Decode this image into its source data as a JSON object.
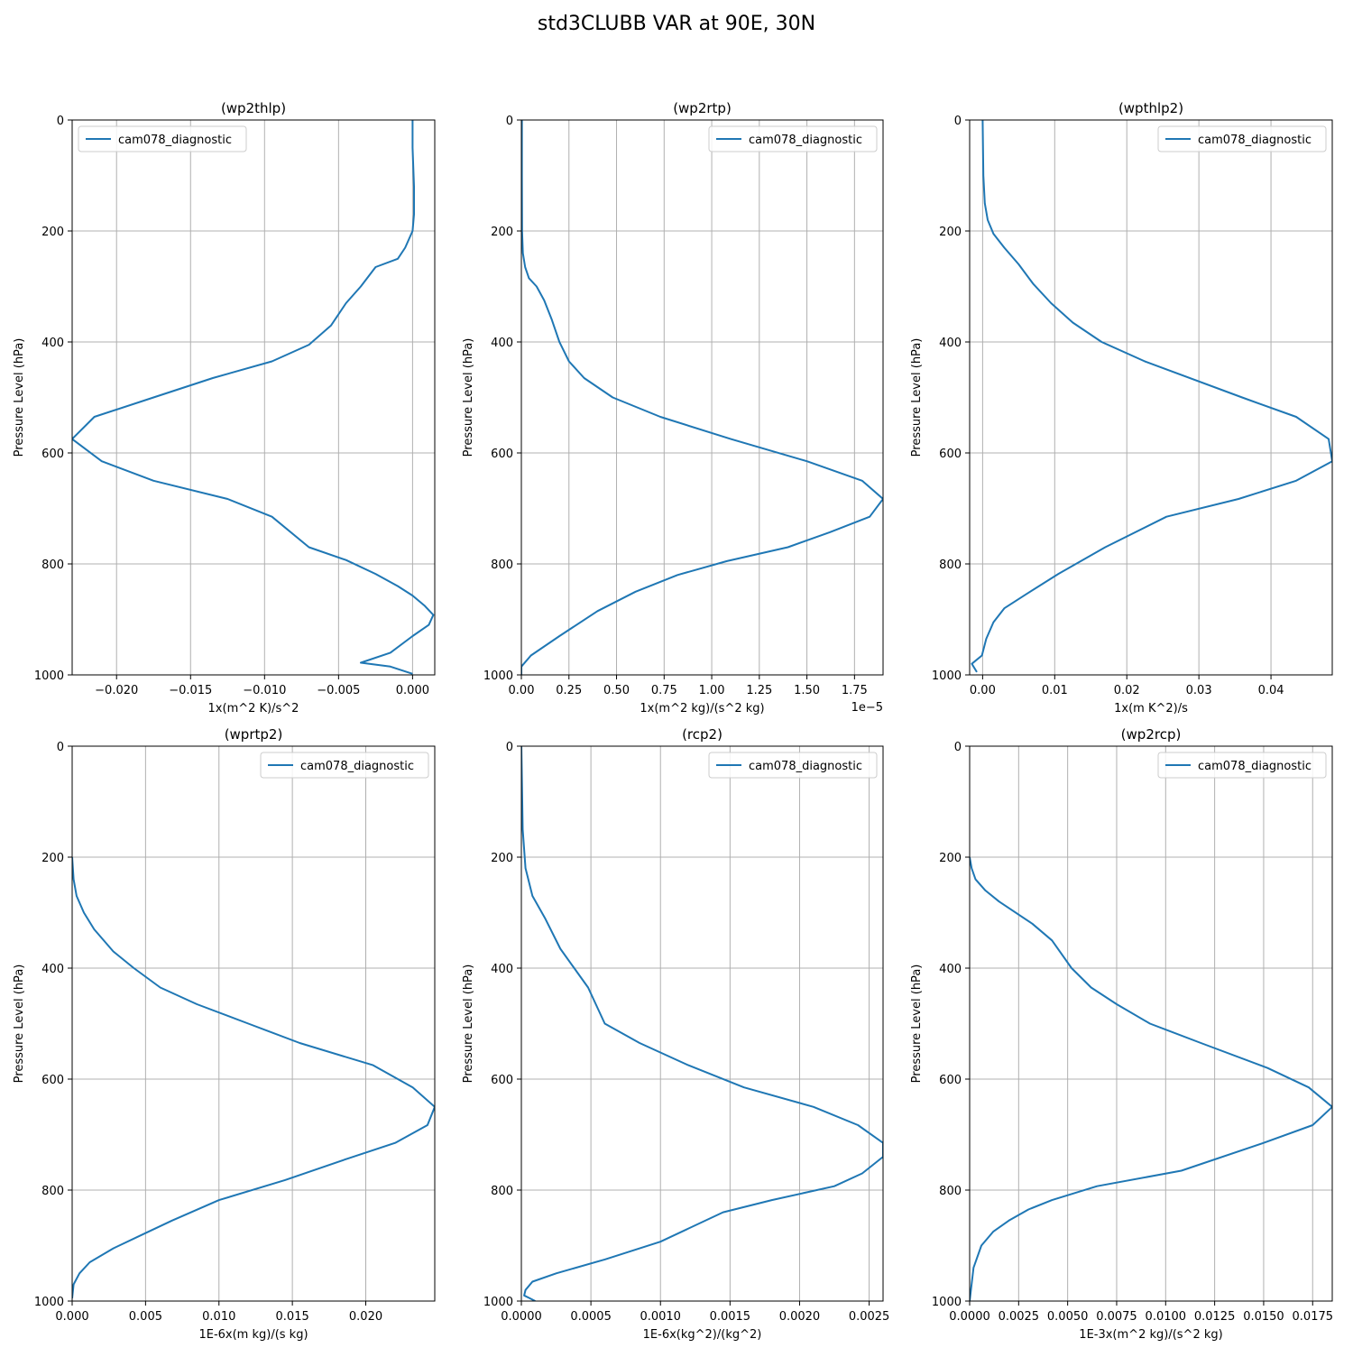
{
  "figure": {
    "suptitle": "std3CLUBB VAR at 90E, 30N"
  },
  "colors": {
    "line": "#1f77b4",
    "grid": "#b0b0b0",
    "axes": "#000000",
    "legend_border": "#cccccc"
  },
  "chart_data": [
    {
      "type": "line",
      "title": "(wp2thlp)",
      "xlabel": "1x(m^2 K)/s^2",
      "ylabel": "Pressure Level (hPa)",
      "xlim": [
        -0.023,
        0.0015
      ],
      "ylim": [
        1000,
        0
      ],
      "xticks": [
        -0.02,
        -0.015,
        -0.01,
        -0.005,
        0.0
      ],
      "xtick_labels": [
        "−0.020",
        "−0.015",
        "−0.010",
        "−0.005",
        "0.000"
      ],
      "yticks": [
        0,
        200,
        400,
        600,
        800,
        1000
      ],
      "offset_text": "",
      "grid": true,
      "legend": {
        "location": "upper left",
        "entries": [
          "cam078_diagnostic"
        ]
      },
      "series": [
        {
          "name": "cam078_diagnostic",
          "x": [
            0.0,
            0.0,
            0.0001,
            0.0001,
            0.0,
            -0.0005,
            -0.001,
            -0.0025,
            -0.0035,
            -0.0045,
            -0.0055,
            -0.007,
            -0.0095,
            -0.0135,
            -0.0175,
            -0.0215,
            -0.023,
            -0.021,
            -0.0175,
            -0.0125,
            -0.0095,
            -0.007,
            -0.0045,
            -0.0025,
            -0.001,
            0.0,
            0.0008,
            0.0014,
            0.0011,
            0.0,
            -0.0015,
            -0.0035,
            -0.0015,
            0.0
          ],
          "y": [
            0,
            50,
            120,
            170,
            200,
            230,
            250,
            265,
            300,
            330,
            370,
            405,
            435,
            465,
            500,
            535,
            575,
            615,
            650,
            683,
            715,
            770,
            793,
            818,
            840,
            857,
            875,
            892,
            910,
            930,
            960,
            978,
            985,
            998
          ]
        }
      ]
    },
    {
      "type": "line",
      "title": "(wp2rtp)",
      "xlabel": "1x(m^2 kg)/(s^2 kg)",
      "ylabel": "Pressure Level (hPa)",
      "xlim": [
        0.0,
        1.9
      ],
      "ylim": [
        1000,
        0
      ],
      "xticks": [
        0.0,
        0.25,
        0.5,
        0.75,
        1.0,
        1.25,
        1.5,
        1.75
      ],
      "xtick_labels": [
        "0.00",
        "0.25",
        "0.50",
        "0.75",
        "1.00",
        "1.25",
        "1.50",
        "1.75"
      ],
      "yticks": [
        0,
        200,
        400,
        600,
        800,
        1000
      ],
      "offset_text": "1e−5",
      "grid": true,
      "legend": {
        "location": "upper right",
        "entries": [
          "cam078_diagnostic"
        ]
      },
      "series": [
        {
          "name": "cam078_diagnostic",
          "x": [
            0.003,
            0.003,
            0.004,
            0.008,
            0.02,
            0.04,
            0.08,
            0.12,
            0.16,
            0.2,
            0.25,
            0.33,
            0.48,
            0.73,
            1.1,
            1.5,
            1.79,
            1.9,
            1.83,
            1.62,
            1.4,
            1.08,
            0.82,
            0.6,
            0.4,
            0.2,
            0.05,
            0.0,
            0.0
          ],
          "y": [
            0,
            100,
            200,
            240,
            265,
            285,
            300,
            325,
            360,
            400,
            435,
            465,
            500,
            535,
            575,
            615,
            650,
            683,
            715,
            743,
            770,
            795,
            820,
            850,
            885,
            930,
            965,
            985,
            1000
          ]
        }
      ]
    },
    {
      "type": "line",
      "title": "(wpthlp2)",
      "xlabel": "1x(m K^2)/s",
      "ylabel": "Pressure Level (hPa)",
      "xlim": [
        -0.0018,
        0.0485
      ],
      "ylim": [
        1000,
        0
      ],
      "xticks": [
        0.0,
        0.01,
        0.02,
        0.03,
        0.04
      ],
      "xtick_labels": [
        "0.00",
        "0.01",
        "0.02",
        "0.03",
        "0.04"
      ],
      "yticks": [
        0,
        200,
        400,
        600,
        800,
        1000
      ],
      "offset_text": "",
      "grid": true,
      "legend": {
        "location": "upper right",
        "entries": [
          "cam078_diagnostic"
        ]
      },
      "series": [
        {
          "name": "cam078_diagnostic",
          "x": [
            0.0,
            0.0001,
            0.0003,
            0.0007,
            0.0015,
            0.003,
            0.005,
            0.007,
            0.0095,
            0.0125,
            0.0165,
            0.0225,
            0.036,
            0.0435,
            0.048,
            0.0485,
            0.0435,
            0.0355,
            0.0255,
            0.017,
            0.0105,
            0.006,
            0.003,
            0.0015,
            0.0005,
            -0.0001,
            -0.0015,
            -0.0008
          ],
          "y": [
            0,
            100,
            150,
            180,
            205,
            230,
            260,
            295,
            330,
            365,
            400,
            435,
            500,
            535,
            575,
            615,
            650,
            683,
            715,
            770,
            818,
            855,
            880,
            905,
            935,
            965,
            980,
            995
          ]
        }
      ]
    },
    {
      "type": "line",
      "title": "(wprtp2)",
      "xlabel": "1E-6x(m kg)/(s kg)",
      "ylabel": "Pressure Level (hPa)",
      "xlim": [
        0.0,
        0.0247
      ],
      "ylim": [
        1000,
        0
      ],
      "xticks": [
        0.0,
        0.005,
        0.01,
        0.015,
        0.02
      ],
      "xtick_labels": [
        "0.000",
        "0.005",
        "0.010",
        "0.015",
        "0.020"
      ],
      "yticks": [
        0,
        200,
        400,
        600,
        800,
        1000
      ],
      "offset_text": "",
      "grid": true,
      "legend": {
        "location": "upper right",
        "entries": [
          "cam078_diagnostic"
        ]
      },
      "series": [
        {
          "name": "cam078_diagnostic",
          "x": [
            0.0,
            0.0001,
            0.0003,
            0.0008,
            0.0015,
            0.0028,
            0.0042,
            0.006,
            0.0085,
            0.012,
            0.0155,
            0.0205,
            0.0232,
            0.0247,
            0.0242,
            0.022,
            0.0188,
            0.0145,
            0.01,
            0.0068,
            0.0048,
            0.0028,
            0.0012,
            0.0005,
            0.0001,
            0.0
          ],
          "y": [
            200,
            240,
            270,
            300,
            330,
            370,
            400,
            435,
            465,
            500,
            535,
            575,
            615,
            650,
            683,
            715,
            743,
            782,
            818,
            855,
            880,
            905,
            930,
            950,
            970,
            995
          ]
        }
      ]
    },
    {
      "type": "line",
      "title": "(rcp2)",
      "xlabel": "1E-6x(kg^2)/(kg^2)",
      "ylabel": "Pressure Level (hPa)",
      "xlim": [
        0.0,
        0.0026
      ],
      "ylim": [
        1000,
        0
      ],
      "xticks": [
        0.0,
        0.0005,
        0.001,
        0.0015,
        0.002,
        0.0025
      ],
      "xtick_labels": [
        "0.0000",
        "0.0005",
        "0.0010",
        "0.0015",
        "0.0020",
        "0.0025"
      ],
      "yticks": [
        0,
        200,
        400,
        600,
        800,
        1000
      ],
      "offset_text": "",
      "grid": true,
      "legend": {
        "location": "upper right",
        "entries": [
          "cam078_diagnostic"
        ]
      },
      "series": [
        {
          "name": "cam078_diagnostic",
          "x": [
            0.0,
            1e-05,
            3e-05,
            8e-05,
            0.00017,
            0.00028,
            0.00038,
            0.00048,
            0.0006,
            0.00085,
            0.0012,
            0.0016,
            0.0021,
            0.00242,
            0.0026,
            0.0026,
            0.00245,
            0.00225,
            0.0018,
            0.00145,
            0.001,
            0.0006,
            0.00025,
            8e-05,
            3e-05,
            2e-05,
            6e-05,
            0.0001
          ],
          "y": [
            0,
            150,
            220,
            270,
            310,
            365,
            400,
            435,
            500,
            535,
            575,
            615,
            650,
            683,
            715,
            740,
            770,
            793,
            818,
            840,
            893,
            925,
            950,
            965,
            980,
            990,
            995,
            1000
          ]
        }
      ]
    },
    {
      "type": "line",
      "title": "(wp2rcp)",
      "xlabel": "1E-3x(m^2 kg)/(s^2 kg)",
      "ylabel": "Pressure Level (hPa)",
      "xlim": [
        0.0,
        0.0185
      ],
      "ylim": [
        1000,
        0
      ],
      "xticks": [
        0.0,
        0.0025,
        0.005,
        0.0075,
        0.01,
        0.0125,
        0.015,
        0.0175
      ],
      "xtick_labels": [
        "0.0000",
        "0.0025",
        "0.0050",
        "0.0075",
        "0.0100",
        "0.0125",
        "0.0150",
        "0.0175"
      ],
      "yticks": [
        0,
        200,
        400,
        600,
        800,
        1000
      ],
      "offset_text": "",
      "grid": true,
      "legend": {
        "location": "upper right",
        "entries": [
          "cam078_diagnostic"
        ]
      },
      "series": [
        {
          "name": "cam078_diagnostic",
          "x": [
            0.0,
            0.0001,
            0.0003,
            0.0008,
            0.0015,
            0.0032,
            0.0042,
            0.0052,
            0.0062,
            0.0075,
            0.0092,
            0.0118,
            0.0152,
            0.0173,
            0.0185,
            0.0175,
            0.015,
            0.0108,
            0.0065,
            0.0042,
            0.003,
            0.002,
            0.0012,
            0.0006,
            0.0002,
            0.0
          ],
          "y": [
            200,
            220,
            240,
            260,
            280,
            320,
            350,
            400,
            435,
            465,
            500,
            535,
            580,
            615,
            650,
            683,
            715,
            765,
            793,
            818,
            835,
            855,
            875,
            900,
            940,
            1000
          ]
        }
      ]
    }
  ]
}
